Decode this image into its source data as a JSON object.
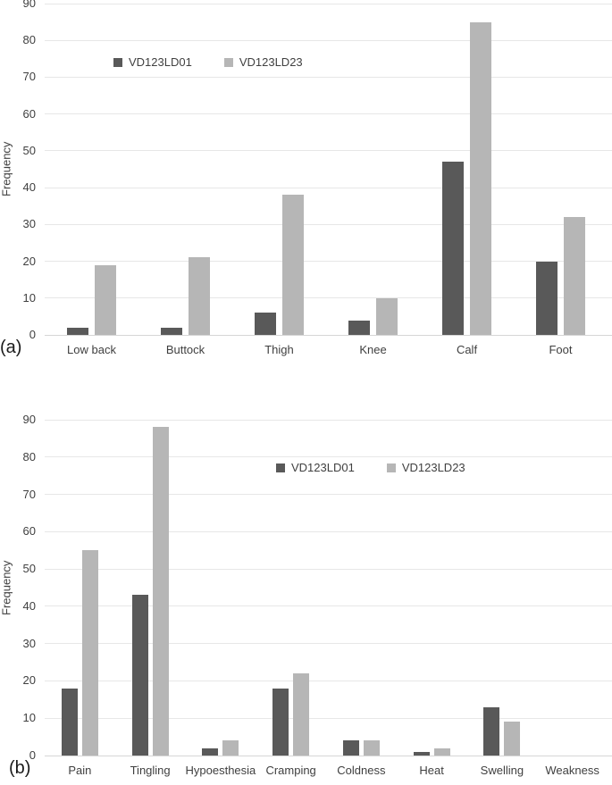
{
  "figure": {
    "panel_a_label": "(a)",
    "panel_b_label": "(b)"
  },
  "chart_data": [
    {
      "type": "bar",
      "panel": "(a)",
      "title": "",
      "xlabel": "",
      "ylabel": "Frequency",
      "ylim": [
        0,
        90
      ],
      "ytick_step": 10,
      "grid": true,
      "legend_position": "inside-top-left",
      "categories": [
        "Low back",
        "Buttock",
        "Thigh",
        "Knee",
        "Calf",
        "Foot"
      ],
      "series": [
        {
          "name": "VD123LD01",
          "color": "#595959",
          "values": [
            2,
            2,
            6,
            4,
            47,
            20
          ]
        },
        {
          "name": "VD123LD23",
          "color": "#b6b6b6",
          "values": [
            19,
            21,
            38,
            10,
            85,
            32
          ]
        }
      ]
    },
    {
      "type": "bar",
      "panel": "(b)",
      "title": "",
      "xlabel": "",
      "ylabel": "Frequency",
      "ylim": [
        0,
        90
      ],
      "ytick_step": 10,
      "grid": true,
      "legend_position": "inside-top-center",
      "categories": [
        "Pain",
        "Tingling",
        "Hypoesthesia",
        "Cramping",
        "Coldness",
        "Heat",
        "Swelling",
        "Weakness"
      ],
      "series": [
        {
          "name": "VD123LD01",
          "color": "#595959",
          "values": [
            18,
            43,
            2,
            18,
            4,
            1,
            13,
            0
          ]
        },
        {
          "name": "VD123LD23",
          "color": "#b6b6b6",
          "values": [
            55,
            88,
            4,
            22,
            4,
            2,
            9,
            0
          ]
        }
      ]
    }
  ]
}
